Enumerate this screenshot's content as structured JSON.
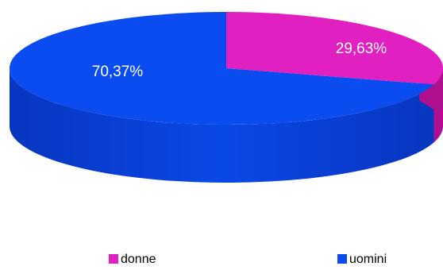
{
  "chart_data": {
    "type": "pie",
    "style": "3d",
    "categories": [
      "donne",
      "uomini"
    ],
    "values": [
      29.63,
      70.37
    ],
    "data_labels": [
      "29,63%",
      "70,37%"
    ],
    "colors": [
      "#e020c0",
      "#0a4cf0"
    ],
    "side_colors": [
      "#b0108f",
      "#0a3ccd"
    ],
    "legend": {
      "position": "bottom",
      "entries": [
        "donne",
        "uomini"
      ]
    }
  }
}
